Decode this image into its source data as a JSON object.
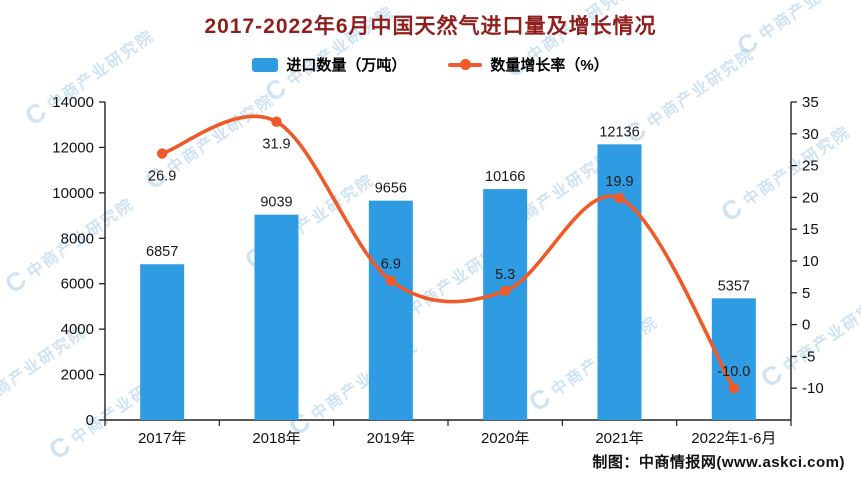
{
  "chart_data": {
    "type": "bar+line",
    "title": "2017-2022年6月中国天然气进口量及增长情况",
    "categories": [
      "2017年",
      "2018年",
      "2019年",
      "2020年",
      "2021年",
      "2022年1-6月"
    ],
    "series": [
      {
        "name": "进口数量（万吨）",
        "type": "bar",
        "axis": "left",
        "color": "#2F9BE2",
        "values": [
          6857,
          9039,
          9656,
          10166,
          12136,
          5357
        ]
      },
      {
        "name": "数量增长率（%）",
        "type": "line",
        "axis": "right",
        "color": "#F05A28",
        "values": [
          26.9,
          31.9,
          6.9,
          5.3,
          19.9,
          -10.0
        ]
      }
    ],
    "left_axis": {
      "range": [
        0,
        14000
      ],
      "ticks": [
        0,
        2000,
        4000,
        6000,
        8000,
        10000,
        12000,
        14000
      ]
    },
    "right_axis": {
      "range": [
        -15,
        35
      ],
      "ticks": [
        -10,
        -5,
        0,
        5,
        10,
        15,
        20,
        25,
        30,
        35
      ]
    },
    "layout": {
      "grid": false,
      "legend_position": "top",
      "growth_label_side": [
        "below",
        "below",
        "above",
        "above",
        "above",
        "above"
      ]
    }
  },
  "footer": "制图：中商情报网(www.askci.com)",
  "watermark": {
    "logo": "C",
    "text": "中商产业研究院",
    "color": "#A9CDE9"
  },
  "colors": {
    "title": "#8E1F1C",
    "axis": "#222222",
    "label": "#111111"
  }
}
